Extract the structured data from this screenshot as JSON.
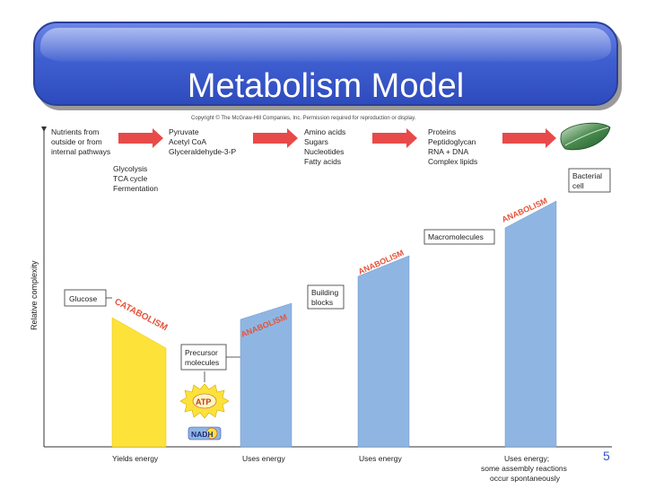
{
  "slide": {
    "title": "Metabolism Model",
    "page_number": "5"
  },
  "figure": {
    "copyright": "Copyright © The McGraw-Hill Companies, Inc. Permission required for reproduction or display.",
    "y_axis_label": "Relative complexity",
    "top_row": [
      {
        "lines": [
          "Nutrients from",
          "outside or from",
          "internal pathways"
        ]
      },
      {
        "lines": [
          "Pyruvate",
          "Acetyl CoA",
          "Glyceraldehyde-3-P"
        ]
      },
      {
        "lines": [
          "Amino acids",
          "Sugars",
          "Nucleotides",
          "Fatty acids"
        ]
      },
      {
        "lines": [
          "Proteins",
          "Peptidoglycan",
          "RNA + DNA",
          "Complex lipids"
        ]
      }
    ],
    "pathways": [
      "Glycolysis",
      "TCA cycle",
      "Fermentation"
    ],
    "boxes": {
      "glucose": "Glucose",
      "precursor": [
        "Precursor",
        "molecules"
      ],
      "building": [
        "Building",
        "blocks"
      ],
      "macromolecules": "Macromolecules",
      "bacterial_cell": [
        "Bacterial",
        "cell"
      ]
    },
    "process_labels": {
      "catabolism": "CATABOLISM",
      "anabolism": "ANABOLISM"
    },
    "energy": {
      "atp": "ATP",
      "nadh": "NADH"
    },
    "bottom_labels": [
      {
        "lines": [
          "Yields energy"
        ]
      },
      {
        "lines": [
          "Uses energy"
        ]
      },
      {
        "lines": [
          "Uses energy"
        ]
      },
      {
        "lines": [
          "Uses energy;",
          "some assembly reactions",
          "occur spontaneously"
        ]
      }
    ],
    "colors": {
      "catabolism_fill": "#fde23a",
      "anabolism_fill": "#8fb6e2",
      "label_red": "#e5533a",
      "arrow_red": "#e84a4a"
    }
  }
}
